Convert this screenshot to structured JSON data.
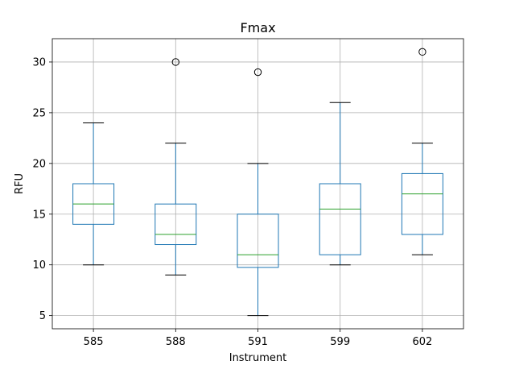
{
  "chart_data": {
    "type": "box",
    "title": "Fmax",
    "xlabel": "Instrument",
    "ylabel": "RFU",
    "categories": [
      "585",
      "588",
      "591",
      "599",
      "602"
    ],
    "boxes": [
      {
        "category": "585",
        "whisker_low": 10,
        "q1": 14,
        "median": 16,
        "q3": 18,
        "whisker_high": 24,
        "outliers": []
      },
      {
        "category": "588",
        "whisker_low": 9,
        "q1": 12,
        "median": 13,
        "q3": 16,
        "whisker_high": 22,
        "outliers": [
          30
        ]
      },
      {
        "category": "591",
        "whisker_low": 5,
        "q1": 9.75,
        "median": 11,
        "q3": 15,
        "whisker_high": 20,
        "outliers": [
          29
        ]
      },
      {
        "category": "599",
        "whisker_low": 10,
        "q1": 11,
        "median": 15.5,
        "q3": 18,
        "whisker_high": 26,
        "outliers": []
      },
      {
        "category": "602",
        "whisker_low": 11,
        "q1": 13,
        "median": 17,
        "q3": 19,
        "whisker_high": 22,
        "outliers": [
          31
        ]
      }
    ],
    "ylim": [
      3.7,
      32.3
    ],
    "yticks": [
      5,
      10,
      15,
      20,
      25,
      30
    ],
    "grid": true,
    "colors": {
      "box": "#1f77b4",
      "median": "#2ca02c",
      "cap": "#000000",
      "outlier": "#000000",
      "grid": "#b0b0b0"
    }
  }
}
